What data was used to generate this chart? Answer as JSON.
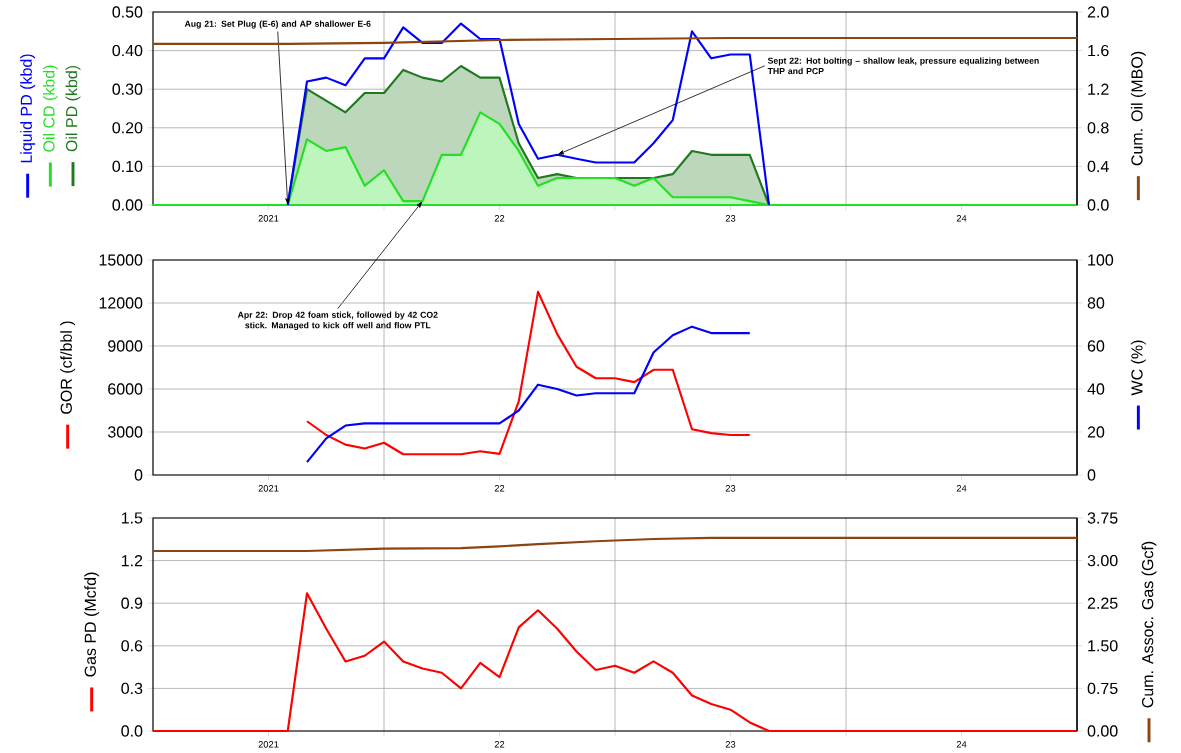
{
  "chart_data": [
    {
      "type": "line",
      "xlim": [
        "2020-07",
        "2024-07"
      ],
      "xticks": [
        {
          "value": "2021-01",
          "label": "2021"
        },
        {
          "value": "2021-07",
          "label": null
        },
        {
          "value": "2022-01",
          "label": "22"
        },
        {
          "value": "2022-07",
          "label": null
        },
        {
          "value": "2023-01",
          "label": "23"
        },
        {
          "value": "2023-07",
          "label": null
        },
        {
          "value": "2024-01",
          "label": "24"
        }
      ],
      "ylim": [
        0,
        0.5
      ],
      "yticks": [
        {
          "value": 0,
          "label": "0.00"
        },
        {
          "value": 0.1,
          "label": "0.10"
        },
        {
          "value": 0.2,
          "label": "0.20"
        },
        {
          "value": 0.3,
          "label": "0.30"
        },
        {
          "value": 0.4,
          "label": "0.40"
        },
        {
          "value": 0.5,
          "label": "0.50"
        }
      ],
      "y2lim": [
        0,
        2
      ],
      "y2ticks": [
        {
          "value": 0,
          "label": "0.0"
        },
        0.4,
        0.8,
        1.2,
        1.6,
        {
          "value": 2,
          "label": "2.0"
        }
      ],
      "y2label": "Cum. Oil (MBO)",
      "grid": true,
      "legend": "left",
      "marker": "none",
      "series": [
        {
          "name": "Liquid PD (kbd)",
          "color": "#0000ff",
          "x": [
            "2021-02",
            "2021-03",
            "2021-04",
            "2021-05",
            "2021-06",
            "2021-07",
            "2021-08",
            "2021-09",
            "2021-10",
            "2021-11",
            "2021-12",
            "2022-01",
            "2022-02",
            "2022-03",
            "2022-04",
            "2022-05",
            "2022-06",
            "2022-07",
            "2022-08",
            "2022-09",
            "2022-10",
            "2022-11",
            "2022-12",
            "2023-01",
            "2023-02",
            "2023-03"
          ],
          "values": [
            0,
            0.32,
            0.33,
            0.31,
            0.38,
            0.38,
            0.46,
            0.42,
            0.42,
            0.47,
            0.43,
            0.43,
            0.21,
            0.12,
            0.13,
            0.12,
            0.11,
            0.11,
            0.11,
            0.16,
            0.22,
            0.45,
            0.38,
            0.39,
            0.39,
            0
          ]
        },
        {
          "name": "Oil CD (kbd)",
          "color": "#22e022",
          "type": "area",
          "x": [
            "2020-07",
            "2021-02",
            "2021-03",
            "2021-04",
            "2021-05",
            "2021-06",
            "2021-07",
            "2021-08",
            "2021-09",
            "2021-10",
            "2021-11",
            "2021-12",
            "2022-01",
            "2022-02",
            "2022-03",
            "2022-04",
            "2022-05",
            "2022-06",
            "2022-07",
            "2022-08",
            "2022-09",
            "2022-10",
            "2022-11",
            "2022-12",
            "2023-01",
            "2023-02",
            "2023-03",
            "2024-07"
          ],
          "values": [
            0,
            0,
            0.17,
            0.14,
            0.15,
            0.05,
            0.09,
            0.01,
            0.01,
            0.13,
            0.13,
            0.24,
            0.21,
            0.14,
            0.05,
            0.07,
            0.07,
            0.07,
            0.07,
            0.05,
            0.07,
            0.02,
            0.02,
            0.02,
            0.02,
            0.01,
            0,
            0
          ]
        },
        {
          "name": "Oil PD (kbd)",
          "color": "#1f7a1f",
          "type": "area",
          "x": [
            "2021-02",
            "2021-03",
            "2021-04",
            "2021-05",
            "2021-06",
            "2021-07",
            "2021-08",
            "2021-09",
            "2021-10",
            "2021-11",
            "2021-12",
            "2022-01",
            "2022-02",
            "2022-03",
            "2022-04",
            "2022-05",
            "2022-06",
            "2022-07",
            "2022-08",
            "2022-09",
            "2022-10",
            "2022-11",
            "2022-12",
            "2023-01",
            "2023-02",
            "2023-03"
          ],
          "values": [
            0,
            0.3,
            0.27,
            0.24,
            0.29,
            0.29,
            0.35,
            0.33,
            0.32,
            0.36,
            0.33,
            0.33,
            0.16,
            0.07,
            0.08,
            0.07,
            0.07,
            0.07,
            0.07,
            0.07,
            0.08,
            0.14,
            0.13,
            0.13,
            0.13,
            0
          ]
        },
        {
          "color": "#8b4513",
          "axis": "y2",
          "x": [
            "2020-07",
            "2021-02",
            "2021-07",
            "2022-01",
            "2022-07",
            "2023-01",
            "2024-07"
          ],
          "values": [
            1.67,
            1.67,
            1.68,
            1.71,
            1.72,
            1.73,
            1.73
          ]
        }
      ],
      "annotations": [
        {
          "text": "Aug 21: Set Plug (E-6) and AP shallower E-6",
          "x": "2021-02",
          "y": 0
        },
        {
          "text": "Sept 22: Hot bolting – shallow leak, pressure equalizing between THP and PCP",
          "x": "2022-04",
          "y": 0.13
        },
        {
          "text": "Apr 22: Drop 42 foam stick, followed by 42 CO2 stick. Managed to kick off well and flow PTL",
          "x": "2021-09",
          "y": 0.01
        }
      ]
    },
    {
      "type": "line",
      "xlim": [
        "2020-07",
        "2024-07"
      ],
      "xticks": [
        {
          "value": "2021-01",
          "label": "2021"
        },
        {
          "value": "2021-07",
          "label": null
        },
        {
          "value": "2022-01",
          "label": "22"
        },
        {
          "value": "2022-07",
          "label": null
        },
        {
          "value": "2023-01",
          "label": "23"
        },
        {
          "value": "2023-07",
          "label": null
        },
        {
          "value": "2024-01",
          "label": "24"
        }
      ],
      "ylim": [
        0,
        15000
      ],
      "yticks": [
        0,
        3000,
        6000,
        9000,
        12000,
        15000
      ],
      "y2lim": [
        0,
        100
      ],
      "y2ticks": [
        0,
        20,
        40,
        60,
        80,
        100
      ],
      "ylabel": "GOR (cf/bbl )",
      "y2label": "WC (%)",
      "grid": true,
      "marker": "none",
      "series": [
        {
          "color": "#ff0000",
          "x": [
            "2021-03",
            "2021-04",
            "2021-05",
            "2021-06",
            "2021-07",
            "2021-08",
            "2021-09",
            "2021-10",
            "2021-11",
            "2021-12",
            "2022-01",
            "2022-02",
            "2022-03",
            "2022-04",
            "2022-05",
            "2022-06",
            "2022-07",
            "2022-08",
            "2022-09",
            "2022-10",
            "2022-11",
            "2022-12",
            "2023-01",
            "2023-02"
          ],
          "values": [
            3750,
            2790,
            2120,
            1850,
            2250,
            1450,
            1450,
            1450,
            1450,
            1660,
            1470,
            5140,
            12780,
            9830,
            7550,
            6750,
            6750,
            6480,
            7340,
            7340,
            3190,
            2920,
            2790,
            2790
          ]
        },
        {
          "color": "#0000ff",
          "axis": "y2",
          "x": [
            "2021-03",
            "2021-04",
            "2021-05",
            "2021-06",
            "2021-07",
            "2021-08",
            "2021-09",
            "2021-10",
            "2021-11",
            "2021-12",
            "2022-01",
            "2022-02",
            "2022-03",
            "2022-04",
            "2022-05",
            "2022-06",
            "2022-07",
            "2022-08",
            "2022-09",
            "2022-10",
            "2022-11",
            "2022-12",
            "2023-01",
            "2023-02"
          ],
          "values": [
            6,
            17,
            23,
            24,
            24,
            24,
            24,
            24,
            24,
            24,
            24,
            30,
            42,
            40,
            37,
            38,
            38,
            38,
            57,
            65,
            69,
            66,
            66,
            66
          ]
        }
      ]
    },
    {
      "type": "line",
      "xlim": [
        "2020-07",
        "2024-07"
      ],
      "xticks": [
        {
          "value": "2021-01",
          "label": "2021"
        },
        {
          "value": "2021-07",
          "label": null
        },
        {
          "value": "2022-01",
          "label": "22"
        },
        {
          "value": "2022-07",
          "label": null
        },
        {
          "value": "2023-01",
          "label": "23"
        },
        {
          "value": "2023-07",
          "label": null
        },
        {
          "value": "2024-01",
          "label": "24"
        }
      ],
      "ylim": [
        0,
        1.5
      ],
      "yticks": [
        {
          "value": 0,
          "label": "0.0"
        },
        0.3,
        0.6,
        0.9,
        1.2,
        1.5
      ],
      "y2lim": [
        0,
        3.75
      ],
      "y2ticks": [
        {
          "value": 0,
          "label": "0.00"
        },
        0.75,
        {
          "value": 1.5,
          "label": "1.50"
        },
        2.25,
        {
          "value": 3,
          "label": "3.00"
        },
        3.75
      ],
      "ylabel": "Gas PD (Mcfd)",
      "y2label": "Cum. Assoc. Gas (Gcf)",
      "grid": true,
      "marker": "none",
      "series": [
        {
          "color": "#ff0000",
          "x": [
            "2020-07",
            "2021-02",
            "2021-03",
            "2021-04",
            "2021-05",
            "2021-06",
            "2021-07",
            "2021-08",
            "2021-09",
            "2021-10",
            "2021-11",
            "2021-12",
            "2022-01",
            "2022-02",
            "2022-03",
            "2022-04",
            "2022-05",
            "2022-06",
            "2022-07",
            "2022-08",
            "2022-09",
            "2022-10",
            "2022-11",
            "2022-12",
            "2023-01",
            "2023-02",
            "2023-03",
            "2024-07"
          ],
          "values": [
            0,
            0,
            0.97,
            0.72,
            0.49,
            0.53,
            0.63,
            0.49,
            0.44,
            0.41,
            0.3,
            0.48,
            0.38,
            0.73,
            0.85,
            0.72,
            0.56,
            0.43,
            0.46,
            0.41,
            0.49,
            0.41,
            0.25,
            0.19,
            0.15,
            0.06,
            0,
            0
          ]
        },
        {
          "color": "#8b4513",
          "axis": "y2",
          "x": [
            "2020-07",
            "2021-03",
            "2021-07",
            "2021-11",
            "2022-01",
            "2022-03",
            "2022-06",
            "2022-09",
            "2022-12",
            "2024-07"
          ],
          "values": [
            3.17,
            3.17,
            3.21,
            3.22,
            3.25,
            3.29,
            3.34,
            3.38,
            3.4,
            3.4
          ]
        }
      ]
    }
  ]
}
